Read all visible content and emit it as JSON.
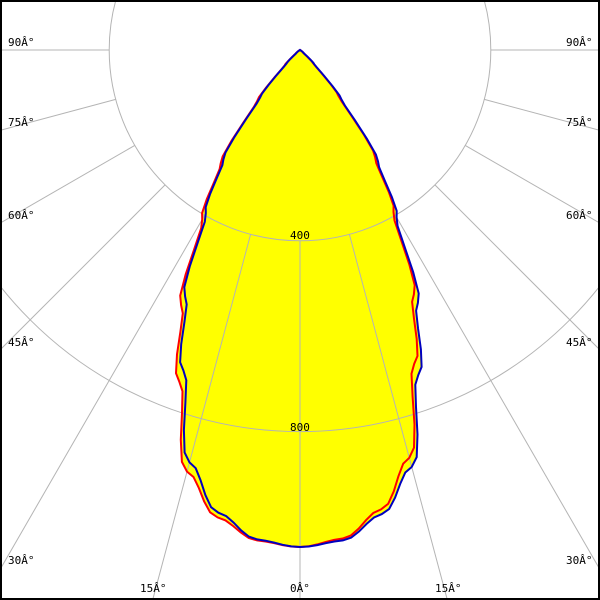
{
  "chart_data": {
    "type": "polar",
    "angle_unit": "degrees",
    "angle_labels": [
      "0Â°",
      "15Â°",
      "30Â°",
      "45Â°",
      "60Â°",
      "75Â°",
      "90Â°"
    ],
    "radial_ticks": [
      400,
      800
    ],
    "radial_tick_labels": [
      "400",
      "800"
    ],
    "grid": true,
    "fill_color": "#ffff00",
    "series": [
      {
        "color": "#ff0000",
        "angles": [
          -90,
          -80,
          -70,
          -60,
          -50,
          -45,
          -40,
          -35,
          -30,
          -25,
          -20,
          -15,
          -10,
          -5,
          0,
          5,
          10,
          15,
          20,
          25,
          30,
          35,
          40,
          45,
          50,
          60,
          70,
          80,
          90
        ],
        "values": [
          0,
          0,
          0,
          0,
          12,
          45,
          140,
          290,
          410,
          590,
          740,
          915,
          995,
          1032,
          1042,
          1028,
          978,
          885,
          700,
          565,
          392,
          275,
          125,
          38,
          8,
          0,
          0,
          0,
          0
        ]
      },
      {
        "color": "#0000c0",
        "angles": [
          -90,
          -80,
          -70,
          -60,
          -50,
          -45,
          -40,
          -35,
          -30,
          -25,
          -20,
          -15,
          -10,
          -5,
          0,
          5,
          10,
          15,
          20,
          25,
          30,
          35,
          40,
          45,
          50,
          60,
          70,
          80,
          90
        ],
        "values": [
          0,
          0,
          0,
          0,
          10,
          40,
          130,
          280,
          395,
          570,
          715,
          895,
          985,
          1030,
          1042,
          1032,
          988,
          905,
          725,
          585,
          405,
          285,
          135,
          42,
          10,
          0,
          0,
          0,
          0
        ]
      }
    ]
  }
}
